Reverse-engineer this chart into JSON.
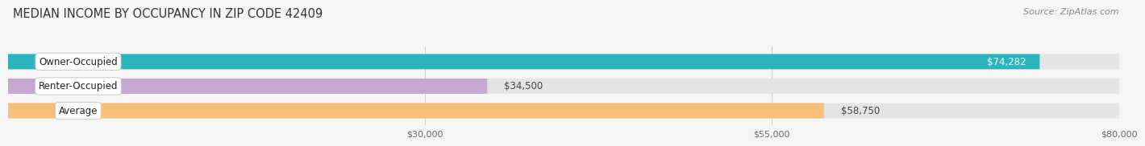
{
  "title": "MEDIAN INCOME BY OCCUPANCY IN ZIP CODE 42409",
  "source": "Source: ZipAtlas.com",
  "categories": [
    "Owner-Occupied",
    "Renter-Occupied",
    "Average"
  ],
  "values": [
    74282,
    34500,
    58750
  ],
  "bar_colors": [
    "#2ab5be",
    "#c4a8d0",
    "#f5c07a"
  ],
  "value_labels": [
    "$74,282",
    "$34,500",
    "$58,750"
  ],
  "xlim": [
    0,
    80000
  ],
  "xticks": [
    30000,
    55000,
    80000
  ],
  "xtick_labels": [
    "$30,000",
    "$55,000",
    "$80,000"
  ],
  "background_color": "#f5f5f5",
  "bar_track_color": "#e4e4e4",
  "title_fontsize": 10.5,
  "bar_height": 0.62,
  "bar_label_fontsize": 8.5,
  "value_label_fontsize": 8.5,
  "source_fontsize": 8
}
